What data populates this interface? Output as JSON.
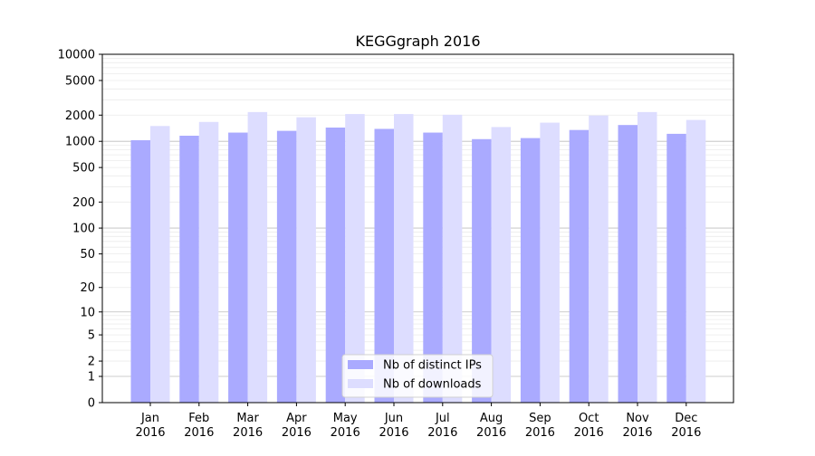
{
  "chart_data": {
    "type": "bar",
    "title": "KEGGgraph 2016",
    "yscale": "log1p",
    "ylim": [
      0,
      10000
    ],
    "yticks": [
      0,
      1,
      2,
      5,
      10,
      20,
      50,
      100,
      200,
      500,
      1000,
      2000,
      5000,
      10000
    ],
    "ytick_labels": [
      "0",
      "1",
      "2",
      "5",
      "10",
      "20",
      "50",
      "100",
      "200",
      "500",
      "1000",
      "2000",
      "5000",
      "10000"
    ],
    "categories": [
      [
        "Jan",
        "2016"
      ],
      [
        "Feb",
        "2016"
      ],
      [
        "Mar",
        "2016"
      ],
      [
        "Apr",
        "2016"
      ],
      [
        "May",
        "2016"
      ],
      [
        "Jun",
        "2016"
      ],
      [
        "Jul",
        "2016"
      ],
      [
        "Aug",
        "2016"
      ],
      [
        "Sep",
        "2016"
      ],
      [
        "Oct",
        "2016"
      ],
      [
        "Nov",
        "2016"
      ],
      [
        "Dec",
        "2016"
      ]
    ],
    "series": [
      {
        "name": "Nb of distinct IPs",
        "color": "#aaaaff",
        "values": [
          1030,
          1160,
          1260,
          1320,
          1440,
          1390,
          1260,
          1060,
          1090,
          1350,
          1540,
          1220
        ]
      },
      {
        "name": "Nb of downloads",
        "color": "#ddddff",
        "values": [
          1500,
          1670,
          2170,
          1890,
          2060,
          2060,
          2020,
          1460,
          1640,
          1980,
          2170,
          1760
        ]
      }
    ],
    "grid": true,
    "legend_position": "bottom-center"
  }
}
